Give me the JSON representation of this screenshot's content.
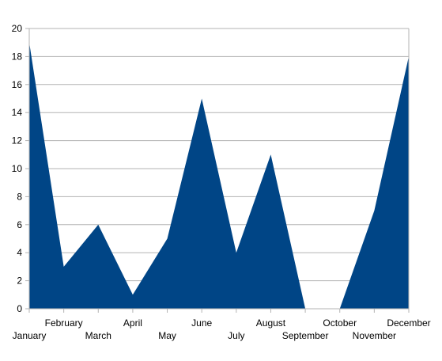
{
  "chart_data": {
    "type": "area",
    "title": "",
    "xlabel": "",
    "ylabel": "",
    "categories": [
      "January",
      "February",
      "March",
      "April",
      "May",
      "June",
      "July",
      "August",
      "September",
      "October",
      "November",
      "December"
    ],
    "values": [
      19,
      3,
      6,
      1,
      5,
      15,
      4,
      11,
      0,
      0,
      7,
      18
    ],
    "ylim": [
      0,
      20
    ],
    "y_ticks": [
      "0",
      "2",
      "4",
      "6",
      "8",
      "10",
      "12",
      "14",
      "16",
      "18",
      "20"
    ],
    "grid": true,
    "legend": "none",
    "colors": {
      "area": "#004586",
      "grid": "#b3b3b3",
      "axis": "#b3b3b3"
    }
  }
}
